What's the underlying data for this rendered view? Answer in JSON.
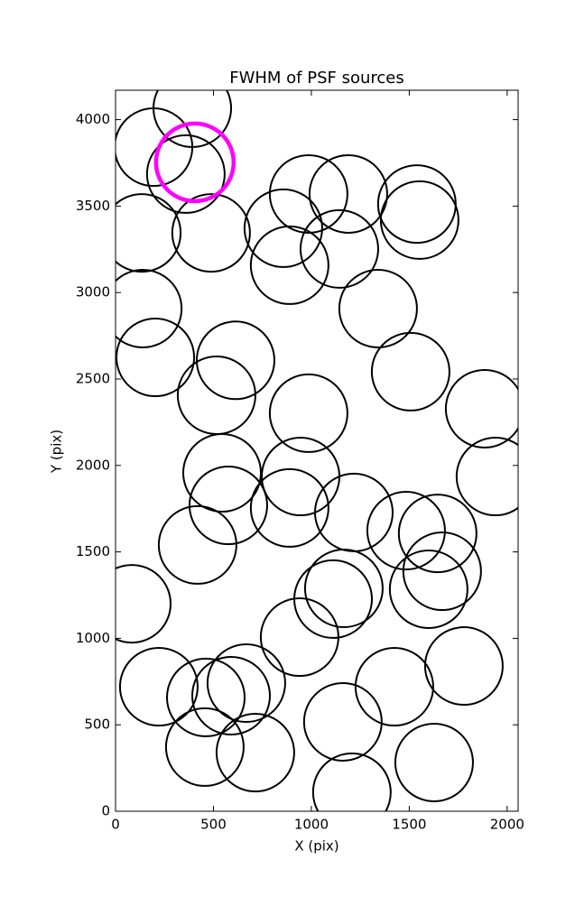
{
  "chart_data": {
    "type": "scatter",
    "title": "FWHM of PSF sources",
    "x_label": "X (pix)",
    "y_label": "Y (pix)",
    "xlim": [
      0,
      2056
    ],
    "ylim": [
      0,
      4170
    ],
    "xticks": [
      0,
      500,
      1000,
      1500,
      2000
    ],
    "yticks": [
      0,
      500,
      1000,
      1500,
      2000,
      2500,
      3000,
      3500,
      4000
    ],
    "grid": false,
    "series": [
      {
        "color": "#000000",
        "x": [
          392,
          194,
          359,
          488,
          134,
          139,
          203,
          613,
          516,
          986,
          857,
          986,
          1189,
          1143,
          889,
          1539,
          1553,
          1341,
          1507,
          1885,
          1940,
          544,
          945,
          576,
          889,
          1217,
          1484,
          1645,
          1668,
          1599,
          1166,
          1111,
          419,
          83,
          940,
          221,
          461,
          590,
          668,
          456,
          714,
          1161,
          1424,
          1779,
          1627,
          1207
        ],
        "values": [
          4066,
          3841,
          3685,
          3345,
          3345,
          2907,
          2625,
          2608,
          2406,
          2302,
          3372,
          3570,
          3570,
          3252,
          3158,
          3512,
          3419,
          2907,
          2542,
          2328,
          1936,
          1957,
          1936,
          1769,
          1754,
          1728,
          1623,
          1607,
          1388,
          1284,
          1289,
          1227,
          1540,
          1200,
          1007,
          720,
          658,
          668,
          741,
          371,
          339,
          517,
          720,
          840,
          282,
          110
        ]
      },
      {
        "color": "#ff00ff",
        "x": [
          405
        ],
        "values": [
          3753
        ]
      }
    ]
  }
}
